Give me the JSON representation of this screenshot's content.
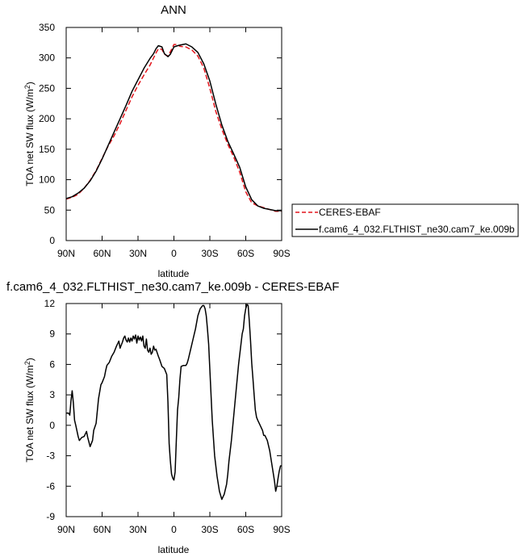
{
  "chart_data": [
    {
      "type": "line",
      "title": "ANN",
      "xlabel": "latitude",
      "ylabel": "TOA net SW flux (W/m",
      "ylabel_sup": "2",
      "ylabel_end": ")",
      "xlim": [
        90,
        -90
      ],
      "ylim": [
        0,
        350
      ],
      "xticks": [
        90,
        60,
        30,
        0,
        -30,
        -60,
        -90
      ],
      "xtick_labels": [
        "90N",
        "60N",
        "30N",
        "0",
        "30S",
        "60S",
        "90S"
      ],
      "yticks": [
        0,
        50,
        100,
        150,
        200,
        250,
        300,
        350
      ],
      "ytick_labels": [
        "0",
        "50",
        "100",
        "150",
        "200",
        "250",
        "300",
        "350"
      ],
      "grid": false,
      "legend_position": "right",
      "series": [
        {
          "name": "CERES-EBAF",
          "color": "#e3141b",
          "dash": true,
          "x": [
            90,
            85,
            80,
            75,
            70,
            65,
            60,
            55,
            50,
            45,
            40,
            35,
            30,
            25,
            20,
            17,
            15,
            13,
            10,
            8,
            5,
            3,
            0,
            -3,
            -5,
            -10,
            -15,
            -20,
            -25,
            -30,
            -35,
            -40,
            -45,
            -50,
            -55,
            -60,
            -65,
            -70,
            -75,
            -80,
            -85,
            -90
          ],
          "values": [
            68,
            71,
            76,
            86,
            99,
            115,
            135,
            155,
            172,
            192,
            214,
            236,
            255,
            272,
            288,
            300,
            308,
            315,
            314,
            306,
            303,
            310,
            322,
            322,
            319,
            318,
            313,
            303,
            283,
            250,
            212,
            183,
            158,
            137,
            112,
            80,
            62,
            57,
            54,
            51,
            48,
            48
          ]
        },
        {
          "name": "f.cam6_4_032.FLTHIST_ne30.cam7_ke.009b",
          "color": "#000000",
          "dash": false,
          "x": [
            90,
            85,
            80,
            75,
            70,
            65,
            60,
            55,
            50,
            45,
            40,
            35,
            30,
            25,
            20,
            17,
            15,
            13,
            10,
            8,
            5,
            3,
            0,
            -3,
            -5,
            -10,
            -15,
            -20,
            -25,
            -30,
            -35,
            -40,
            -45,
            -50,
            -55,
            -60,
            -65,
            -70,
            -75,
            -80,
            -85,
            -90
          ],
          "values": [
            69,
            72,
            78,
            86,
            98,
            114,
            134,
            156,
            178,
            200,
            222,
            245,
            264,
            283,
            299,
            307,
            315,
            320,
            318,
            307,
            302,
            306,
            318,
            320,
            321,
            323,
            318,
            309,
            290,
            262,
            224,
            190,
            163,
            142,
            120,
            88,
            67,
            57,
            53,
            51,
            49,
            49
          ]
        }
      ]
    },
    {
      "type": "line",
      "title": "f.cam6_4_032.FLTHIST_ne30.cam7_ke.009b - CERES-EBAF",
      "xlabel": "latitude",
      "ylabel": "TOA net SW flux (W/m",
      "ylabel_sup": "2",
      "ylabel_end": ")",
      "xlim": [
        90,
        -90
      ],
      "ylim": [
        -9,
        12
      ],
      "xticks": [
        90,
        60,
        30,
        0,
        -30,
        -60,
        -90
      ],
      "xtick_labels": [
        "90N",
        "60N",
        "30N",
        "0",
        "30S",
        "60S",
        "90S"
      ],
      "yticks": [
        -9,
        -6,
        -3,
        0,
        3,
        6,
        9,
        12
      ],
      "ytick_labels": [
        "-9",
        "-6",
        "-3",
        "0",
        "3",
        "6",
        "9",
        "12"
      ],
      "grid": false,
      "series": [
        {
          "name": "",
          "color": "#000000",
          "dash": false,
          "x": [
            90,
            88,
            87,
            86,
            85,
            84,
            83,
            82,
            80,
            79,
            77,
            75,
            73,
            72,
            70,
            68,
            67,
            65,
            63,
            61,
            60,
            58,
            57,
            56,
            54,
            52,
            50,
            48,
            46,
            45,
            43,
            42,
            41,
            40,
            39,
            38,
            37,
            36,
            35,
            34,
            33,
            32,
            31,
            30,
            29,
            28,
            27,
            26,
            25,
            24,
            23,
            22,
            21,
            20,
            19,
            18,
            17,
            16,
            15,
            13,
            12,
            10,
            8,
            6,
            5,
            4,
            3,
            2,
            1,
            0,
            -1,
            -2,
            -3,
            -4,
            -5,
            -6,
            -8,
            -10,
            -11,
            -12,
            -14,
            -16,
            -18,
            -20,
            -22,
            -24,
            -25,
            -26,
            -27,
            -28,
            -29,
            -30,
            -31,
            -32,
            -34,
            -36,
            -38,
            -40,
            -42,
            -44,
            -45,
            -46,
            -48,
            -50,
            -52,
            -54,
            -56,
            -57,
            -58,
            -59,
            -60,
            -61,
            -62,
            -63,
            -64,
            -65,
            -66,
            -67,
            -68,
            -69,
            -70,
            -72,
            -74,
            -75,
            -76,
            -78,
            -80,
            -82,
            -84,
            -85,
            -86,
            -87,
            -88,
            -89,
            -90
          ],
          "values": [
            1.2,
            1.2,
            1.0,
            2.4,
            3.4,
            2.2,
            0.5,
            0.0,
            -1.1,
            -1.5,
            -1.2,
            -1.1,
            -0.6,
            -1.2,
            -2.1,
            -1.5,
            -0.5,
            0.2,
            2.6,
            4.0,
            4.2,
            4.8,
            5.4,
            5.9,
            6.2,
            6.8,
            7.2,
            7.8,
            8.3,
            7.6,
            8.2,
            8.6,
            8.8,
            8.4,
            8.2,
            8.6,
            8.2,
            8.6,
            8.3,
            8.8,
            8.5,
            8.9,
            8.1,
            8.8,
            8.4,
            8.7,
            8.3,
            8.8,
            7.8,
            7.6,
            8.5,
            7.4,
            7.2,
            7.6,
            7.0,
            7.2,
            7.8,
            7.4,
            7.5,
            6.8,
            6.5,
            5.8,
            5.6,
            5.0,
            2.3,
            -1.8,
            -3.5,
            -4.8,
            -5.2,
            -5.4,
            -4.6,
            -1.5,
            1.5,
            2.7,
            4.5,
            5.8,
            5.9,
            5.9,
            6.1,
            6.5,
            7.5,
            8.5,
            9.5,
            10.8,
            11.5,
            11.8,
            11.8,
            11.5,
            10.8,
            9.5,
            8.0,
            5.5,
            3.0,
            0.5,
            -3.0,
            -5.0,
            -6.5,
            -7.3,
            -6.8,
            -5.8,
            -4.8,
            -3.5,
            -1.5,
            1.0,
            3.5,
            6.0,
            8.0,
            9.0,
            9.5,
            10.8,
            11.5,
            11.9,
            11.8,
            10.2,
            8.3,
            6.1,
            4.6,
            3.0,
            1.5,
            0.8,
            0.5,
            0.0,
            -0.5,
            -1.0,
            -1.0,
            -1.5,
            -2.5,
            -4.0,
            -5.5,
            -6.5,
            -6.0,
            -5.2,
            -4.5,
            -4.0,
            -4.0
          ]
        }
      ]
    }
  ]
}
